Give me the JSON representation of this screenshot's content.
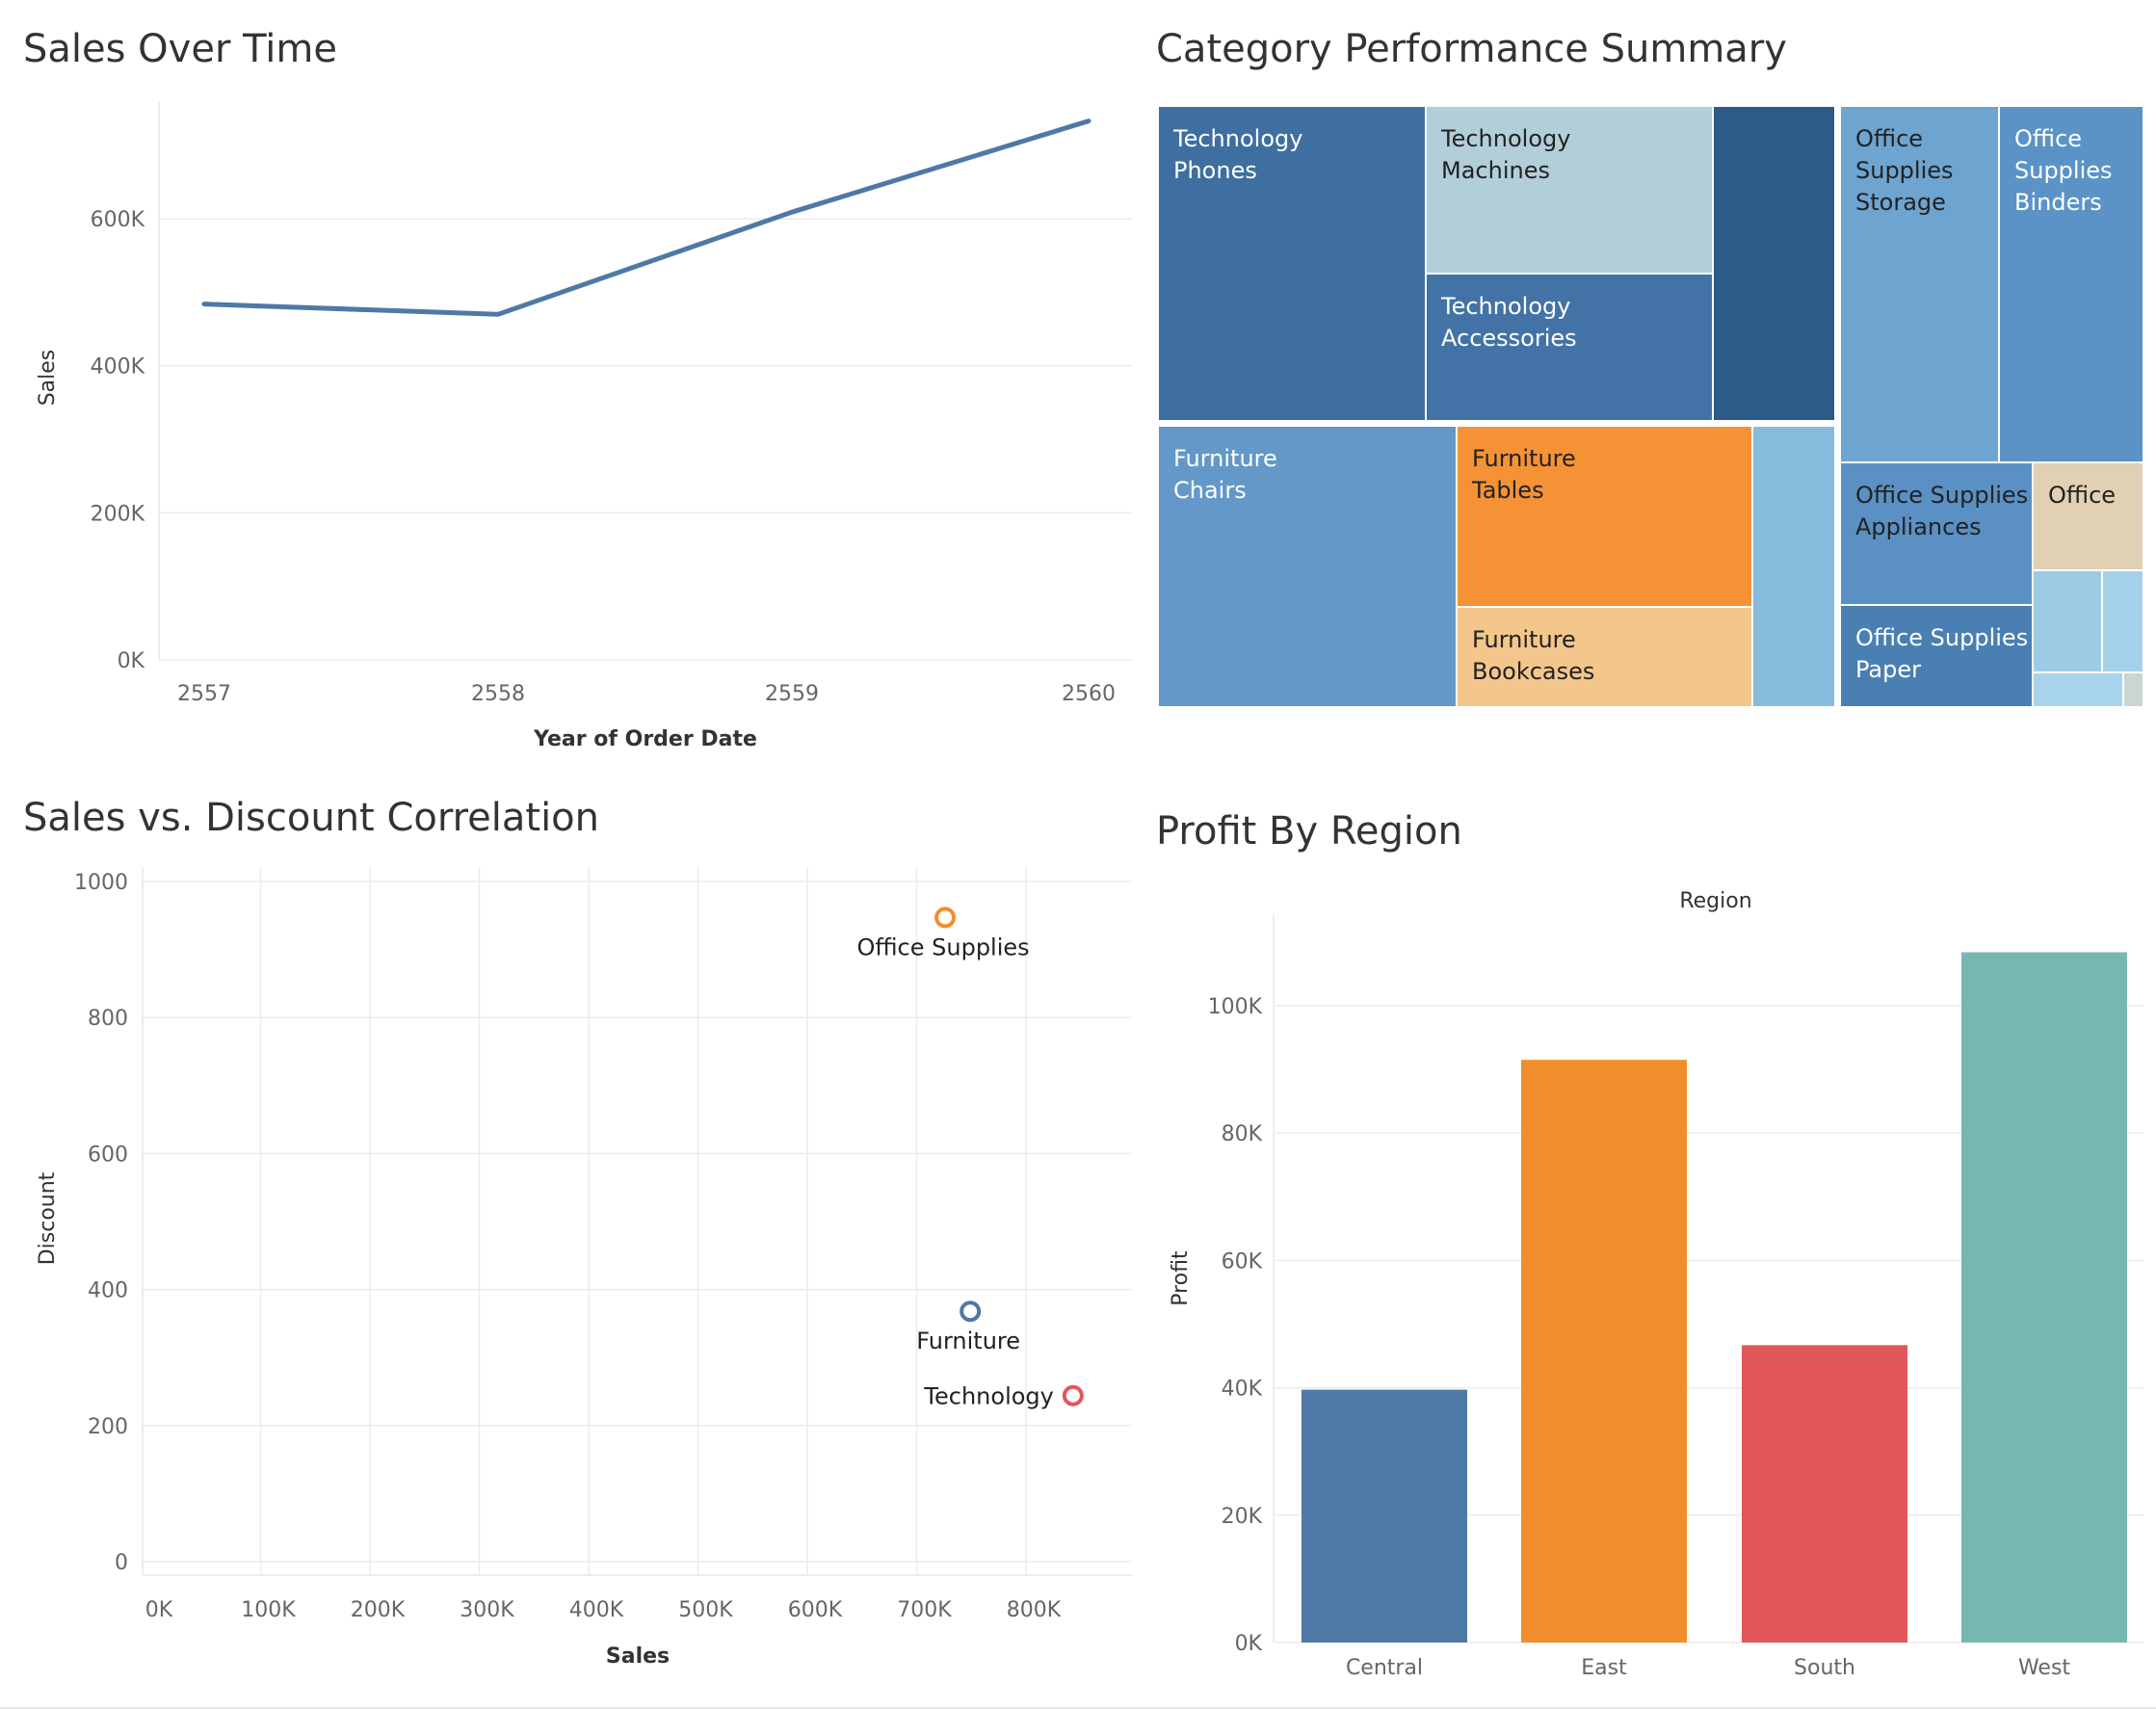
{
  "colors": {
    "blue": "#4e79a7",
    "orange": "#f28e2b",
    "red": "#e15759",
    "teal": "#76b7b2",
    "grid": "#ececec"
  },
  "titles": {
    "sales_over_time": "Sales Over Time",
    "category_performance": "Category Performance Summary",
    "sales_vs_discount": "Sales vs. Discount Correlation",
    "profit_by_region": "Profit By Region"
  },
  "chart_data": [
    {
      "type": "line",
      "title": "Sales Over Time",
      "xlabel": "Year of Order Date",
      "ylabel": "Sales",
      "x": [
        "2557",
        "2558",
        "2559",
        "2560"
      ],
      "series": [
        {
          "values": [
            484000,
            470000,
            609000,
            733000
          ]
        }
      ],
      "ylim": [
        0,
        760000
      ],
      "yticks": [
        "0K",
        "200K",
        "400K",
        "600K"
      ],
      "ytick_values": [
        0,
        200000,
        400000,
        600000
      ],
      "grid": true,
      "color": "#4e79a7"
    },
    {
      "type": "treemap",
      "title": "Category Performance Summary",
      "tiles": [
        {
          "label": [
            "Technology",
            "Phones"
          ],
          "color": "#3e6fa0",
          "text": "#ffffff"
        },
        {
          "label": [
            "Technology",
            "Machines"
          ],
          "color": "#b2ced9",
          "text": "#222222"
        },
        {
          "label": [
            "Technology",
            "Accessories"
          ],
          "color": "#4373a6",
          "text": "#ffffff"
        },
        {
          "label": [],
          "color": "#2c5b8a",
          "text": "#ffffff"
        },
        {
          "label": [
            "Office",
            "Supplies",
            "Storage"
          ],
          "color": "#6da4d0",
          "text": "#222222"
        },
        {
          "label": [
            "Office",
            "Supplies",
            "Binders"
          ],
          "color": "#5b93c6",
          "text": "#ffffff"
        },
        {
          "label": [
            "Furniture",
            "Chairs"
          ],
          "color": "#6398c8",
          "text": "#ffffff"
        },
        {
          "label": [
            "Furniture",
            "Tables"
          ],
          "color": "#f59235",
          "text": "#222222"
        },
        {
          "label": [
            "Furniture",
            "Bookcases"
          ],
          "color": "#f3c68c",
          "text": "#222222"
        },
        {
          "label": [],
          "color": "#86bbdc",
          "text": "#222222"
        },
        {
          "label": [
            "Office Supplies",
            "Appliances"
          ],
          "color": "#5b90c4",
          "text": "#222222"
        },
        {
          "label": [
            "Office"
          ],
          "color": "#e1d0b3",
          "text": "#222222"
        },
        {
          "label": [
            "Office Supplies",
            "Paper"
          ],
          "color": "#4a7fb3",
          "text": "#ffffff"
        },
        {
          "label": [],
          "color": "#9dcbe6",
          "text": "#222222"
        },
        {
          "label": [],
          "color": "#a4d0ea",
          "text": "#222222"
        },
        {
          "label": [],
          "color": "#a8d3ec",
          "text": "#222222"
        },
        {
          "label": [],
          "color": "#c9d6d2",
          "text": "#222222"
        }
      ]
    },
    {
      "type": "scatter",
      "title": "Sales vs. Discount Correlation",
      "xlabel": "Sales",
      "ylabel": "Discount",
      "xlim": [
        0,
        870000
      ],
      "ylim": [
        0,
        1010
      ],
      "xticks": [
        "0K",
        "100K",
        "200K",
        "300K",
        "400K",
        "500K",
        "600K",
        "700K",
        "800K"
      ],
      "xtick_values": [
        0,
        100000,
        200000,
        300000,
        400000,
        500000,
        600000,
        700000,
        800000
      ],
      "yticks": [
        "0",
        "200",
        "400",
        "600",
        "800",
        "1000"
      ],
      "ytick_values": [
        0,
        200,
        400,
        600,
        800,
        1000
      ],
      "grid": true,
      "points": [
        {
          "label": "Office Supplies",
          "x": 719000,
          "y": 947,
          "color": "#f28e2b"
        },
        {
          "label": "Furniture",
          "x": 742000,
          "y": 368,
          "color": "#4e79a7"
        },
        {
          "label": "Technology",
          "x": 836000,
          "y": 244,
          "color": "#e15759"
        }
      ]
    },
    {
      "type": "bar",
      "title": "Profit By Region",
      "header": "Region",
      "ylabel": "Profit",
      "categories": [
        "Central",
        "East",
        "South",
        "West"
      ],
      "values": [
        39700,
        91500,
        46700,
        108400
      ],
      "colors": [
        "#4e79a7",
        "#f28e2b",
        "#e15759",
        "#76b7b2"
      ],
      "ylim": [
        0,
        115000
      ],
      "yticks": [
        "0K",
        "20K",
        "40K",
        "60K",
        "80K",
        "100K"
      ],
      "ytick_values": [
        0,
        20000,
        40000,
        60000,
        80000,
        100000
      ],
      "grid": true
    }
  ]
}
